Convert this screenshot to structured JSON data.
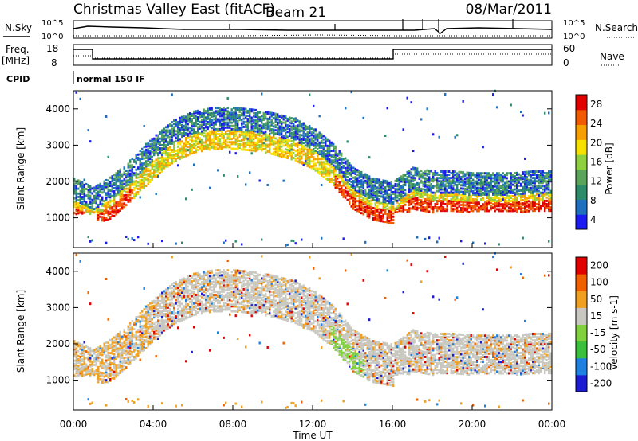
{
  "header": {
    "title": "Christmas Valley East (fitACF)",
    "beam": "Beam 21",
    "date": "08/Mar/2011"
  },
  "top_panels": {
    "nsky_label": "N.Sky",
    "nsearch_label": "N.Search",
    "noise_ticks": [
      "10^5",
      "10^0"
    ],
    "noise_ticks_right": [
      "10^5",
      "10^0"
    ],
    "freq_label": "Freq.",
    "freq_unit": "[MHz]",
    "freq_ticks": [
      "18",
      "8"
    ],
    "nave_label": "Nave",
    "nave_ticks": [
      "60",
      "0"
    ],
    "cpid_label": "CPID",
    "cpid_value": "normal 150 IF"
  },
  "x_axis": {
    "label": "Time UT",
    "ticks": [
      "00:00",
      "04:00",
      "08:00",
      "12:00",
      "16:00",
      "20:00",
      "00:00"
    ]
  },
  "colors": {
    "power": [
      "#1c1cf0",
      "#1f6fbf",
      "#2e8b6a",
      "#5aa55a",
      "#8fd040",
      "#f5e000",
      "#f5a000",
      "#f05a00",
      "#e00000"
    ],
    "velocity": [
      "#e00000",
      "#f06000",
      "#f0a020",
      "#c8c8c0",
      "#80d040",
      "#3cbf3c",
      "#2080e0",
      "#1c1cd0"
    ]
  },
  "chart_data": [
    {
      "type": "heatmap",
      "panel": "power",
      "ylabel": "Slant Range [km]",
      "xlabel": "",
      "yticks": [
        1000,
        2000,
        3000,
        4000
      ],
      "ylim": [
        180,
        4500
      ],
      "xlim_hours": [
        0,
        24
      ],
      "colorbar": {
        "label": "Power [dB]",
        "ticks": [
          4,
          8,
          12,
          16,
          20,
          24,
          28
        ]
      },
      "main_echo_band_km": {
        "hours": [
          0,
          1,
          2,
          3,
          4,
          5,
          6,
          7,
          8,
          9,
          10,
          11,
          12,
          13,
          14,
          15,
          16,
          17,
          18,
          19,
          20,
          21,
          22,
          23,
          24
        ],
        "range": [
          1200,
          950,
          1300,
          1800,
          2350,
          2800,
          3050,
          3150,
          3150,
          3100,
          3000,
          2850,
          2600,
          2150,
          1500,
          1200,
          1100,
          1500,
          1400,
          1400,
          1350,
          1350,
          1350,
          1400,
          1400
        ]
      }
    },
    {
      "type": "heatmap",
      "panel": "velocity",
      "ylabel": "Slant Range [km]",
      "xlabel": "Time UT",
      "yticks": [
        1000,
        2000,
        3000,
        4000
      ],
      "ylim": [
        180,
        4500
      ],
      "xlim_hours": [
        0,
        24
      ],
      "colorbar": {
        "label": "Velocity [m s-1]",
        "ticks": [
          200,
          100,
          50,
          15,
          -15,
          -50,
          -100,
          -200
        ]
      }
    }
  ]
}
